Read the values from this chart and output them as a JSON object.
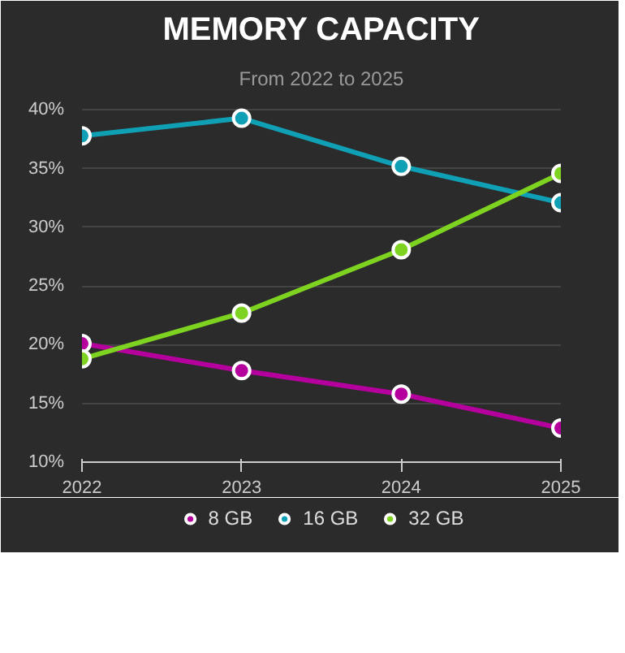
{
  "chart_data": {
    "type": "line",
    "title": "MEMORY CAPACITY",
    "subtitle": "From 2022 to 2025",
    "x": [
      2022,
      2023,
      2024,
      2025
    ],
    "xlim": [
      2022,
      2025
    ],
    "xticks": [
      2022,
      2023,
      2024,
      2025
    ],
    "ylim": [
      10,
      41
    ],
    "yticks": [
      {
        "value": 10,
        "label": "10%"
      },
      {
        "value": 15,
        "label": "15%"
      },
      {
        "value": 20,
        "label": "20%"
      },
      {
        "value": 25,
        "label": "25%"
      },
      {
        "value": 30,
        "label": "30%"
      },
      {
        "value": 35,
        "label": "35%"
      },
      {
        "value": 40,
        "label": "40%"
      }
    ],
    "series": [
      {
        "name": "8 GB",
        "color": "#b5009e",
        "values": [
          20.1,
          17.8,
          15.8,
          12.9
        ]
      },
      {
        "name": "16 GB",
        "color": "#0fa0b5",
        "values": [
          37.8,
          39.3,
          35.2,
          32.1
        ]
      },
      {
        "name": "32 GB",
        "color": "#7ed321",
        "values": [
          18.8,
          22.7,
          28.1,
          34.6
        ]
      }
    ],
    "grid": "y",
    "legend": "bottom",
    "marker": "circle",
    "line_style": "solid"
  }
}
